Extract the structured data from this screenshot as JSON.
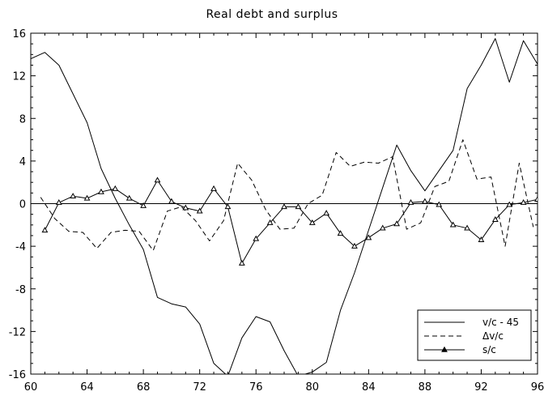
{
  "chart_data": {
    "type": "line",
    "title": "Real debt and surplus",
    "xlabel": "",
    "ylabel": "",
    "xlim": [
      60,
      96
    ],
    "ylim": [
      -16,
      16
    ],
    "x_ticks": [
      60,
      64,
      68,
      72,
      76,
      80,
      84,
      88,
      92,
      96
    ],
    "y_ticks": [
      16,
      12,
      8,
      4,
      0,
      -4,
      -8,
      -12,
      -16
    ],
    "legend_position": "bottom-right",
    "zero_line": true,
    "series": [
      {
        "name": "v/c - 45",
        "style": "solid",
        "x": [
          60,
          61,
          62,
          63,
          64,
          65,
          66,
          67,
          68,
          69,
          70,
          71,
          72,
          73,
          74,
          75,
          76,
          77,
          78,
          79,
          80,
          81,
          82,
          83,
          84,
          85,
          86,
          87,
          88,
          89,
          90,
          91,
          92,
          93,
          94,
          95,
          96
        ],
        "values": [
          13.6,
          14.2,
          13.0,
          10.3,
          7.6,
          3.3,
          0.5,
          -2.0,
          -4.3,
          -8.8,
          -9.4,
          -9.7,
          -11.3,
          -15.0,
          -16.2,
          -12.6,
          -10.6,
          -11.1,
          -13.8,
          -16.2,
          -15.8,
          -14.9,
          -10.0,
          -6.5,
          -2.5,
          1.5,
          5.5,
          3.1,
          1.2,
          3.1,
          5.0,
          10.8,
          13.0,
          15.5,
          11.4,
          15.3,
          13.1
        ]
      },
      {
        "name": "Δv/c",
        "style": "dashed",
        "x": [
          60.7,
          61.7,
          62.7,
          63.7,
          64.7,
          65.7,
          66.7,
          67.7,
          68.7,
          69.7,
          70.7,
          71.7,
          72.7,
          73.7,
          74.7,
          75.7,
          76.7,
          77.7,
          78.7,
          79.7,
          80.7,
          81.7,
          82.7,
          83.7,
          84.7,
          85.7,
          86.7,
          87.7,
          88.7,
          89.7,
          90.7,
          91.7,
          92.7,
          93.7,
          94.7,
          95.7
        ],
        "values": [
          0.6,
          -1.4,
          -2.6,
          -2.7,
          -4.2,
          -2.7,
          -2.5,
          -2.6,
          -4.4,
          -0.7,
          -0.3,
          -1.6,
          -3.5,
          -1.6,
          3.8,
          2.2,
          -0.6,
          -2.4,
          -2.3,
          0.0,
          0.8,
          4.8,
          3.5,
          3.9,
          3.8,
          4.4,
          -2.4,
          -1.8,
          1.6,
          2.1,
          6.0,
          2.3,
          2.5,
          -4.0,
          3.8,
          -2.2
        ]
      },
      {
        "name": "s/c",
        "style": "solid-triangle-markers",
        "x": [
          61,
          62,
          63,
          64,
          65,
          66,
          67,
          68,
          69,
          70,
          71,
          72,
          73,
          74,
          75,
          76,
          77,
          78,
          79,
          80,
          81,
          82,
          83,
          84,
          85,
          86,
          87,
          88,
          89,
          90,
          91,
          92,
          93,
          94,
          95,
          96
        ],
        "values": [
          -2.5,
          0.1,
          0.7,
          0.5,
          1.1,
          1.4,
          0.5,
          -0.2,
          2.2,
          0.2,
          -0.4,
          -0.7,
          1.4,
          -0.3,
          -5.6,
          -3.3,
          -1.8,
          -0.3,
          -0.3,
          -1.8,
          -0.9,
          -2.8,
          -4.0,
          -3.2,
          -2.3,
          -1.9,
          0.1,
          0.2,
          -0.1,
          -2.0,
          -2.3,
          -3.4,
          -1.5,
          -0.1,
          0.1,
          0.4
        ]
      }
    ]
  }
}
